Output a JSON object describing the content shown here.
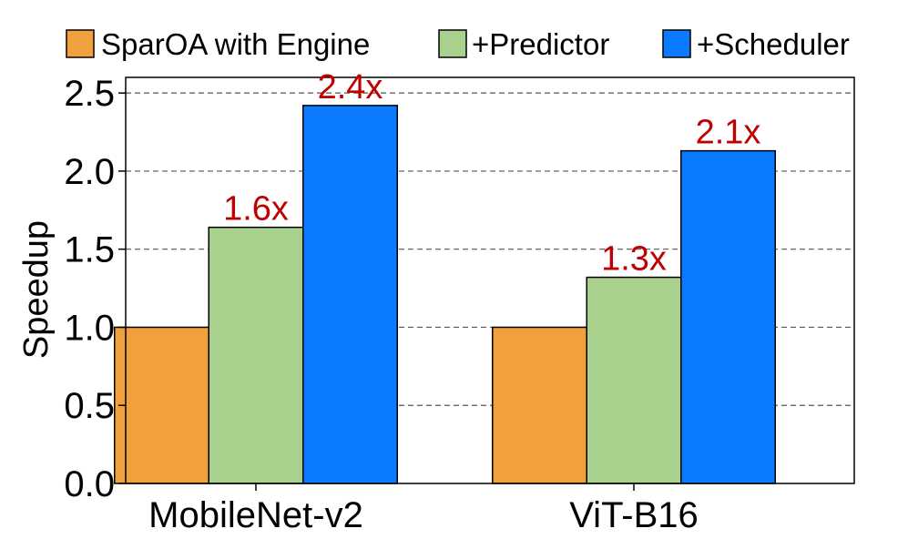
{
  "chart_data": {
    "type": "bar",
    "categories": [
      "MobileNet-v2",
      "ViT-B16"
    ],
    "series": [
      {
        "name": "SparOA with Engine",
        "color": "#f0a03c",
        "values": [
          1.0,
          1.0
        ],
        "labels": [
          "",
          ""
        ]
      },
      {
        "name": "+Predictor",
        "color": "#a8d18d",
        "values": [
          1.64,
          1.32
        ],
        "labels": [
          "1.6x",
          "1.3x"
        ]
      },
      {
        "name": "+Scheduler",
        "color": "#0a7bff",
        "values": [
          2.42,
          2.13
        ],
        "labels": [
          "2.4x",
          "2.1x"
        ]
      }
    ],
    "ylabel": "Speedup",
    "xlabel": "",
    "ylim": [
      0,
      2.6
    ],
    "yticks": [
      "0.0",
      "0.5",
      "1.0",
      "1.5",
      "2.0",
      "2.5"
    ],
    "grid": "horizontal dashed",
    "legend_position": "top",
    "label_color": "#c00000"
  }
}
